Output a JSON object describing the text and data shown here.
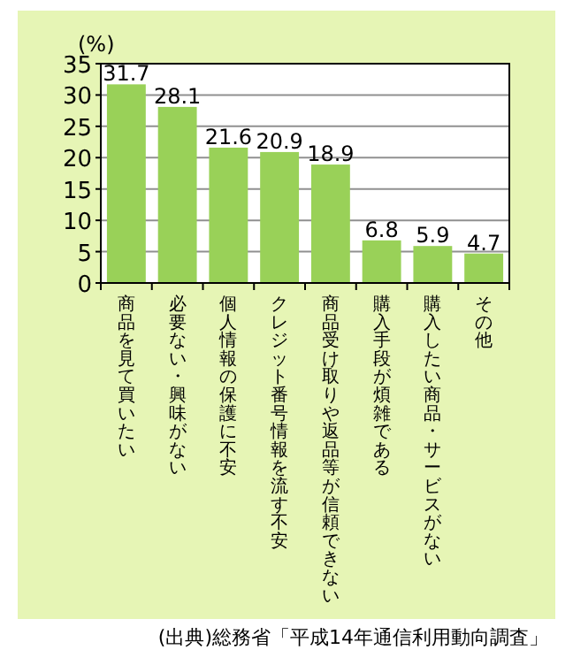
{
  "chart_data": {
    "type": "bar",
    "ylabel": "(%)",
    "categories": [
      "商品を見て買いたい",
      "必要ない・興味がない",
      "個人情報の保護に不安",
      "クレジット番号情報を流す不安",
      "商品受け取りや返品等が信頼できない",
      "購入手段が煩雑である",
      "購入したい商品・サービスがない",
      "その他"
    ],
    "values": [
      31.7,
      28.1,
      21.6,
      20.9,
      18.9,
      6.8,
      5.9,
      4.7
    ],
    "color": "#99d158",
    "ylim": [
      0,
      35
    ],
    "yticks": [
      0,
      5,
      10,
      15,
      20,
      25,
      30,
      35
    ],
    "grid": "y",
    "data_labels": true,
    "annotations": [
      "(出典)総務省「平成14年通信利用動向調査」"
    ]
  }
}
